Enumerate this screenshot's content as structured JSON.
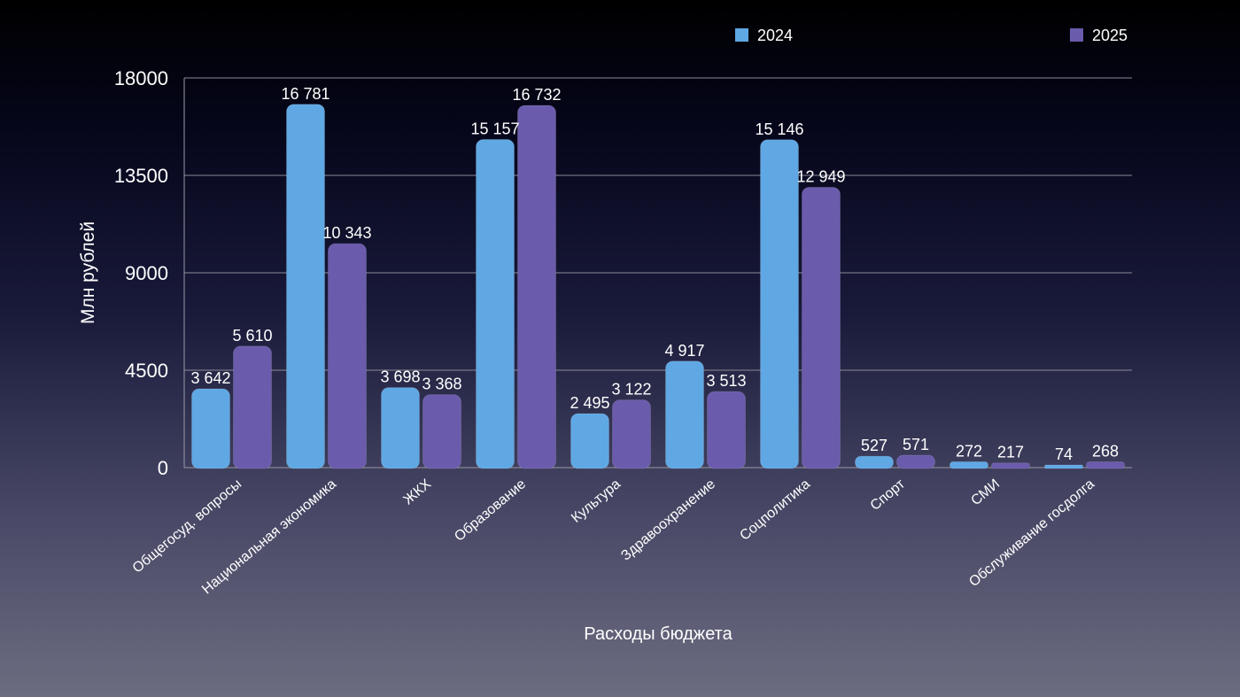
{
  "chart_data": {
    "type": "bar",
    "title": "",
    "xlabel": "Расходы бюджета",
    "ylabel": "Млн рублей",
    "ylim": [
      0,
      18000
    ],
    "yticks": [
      0,
      4500,
      9000,
      13500,
      18000
    ],
    "ytick_labels": [
      "0",
      "4500",
      "9000",
      "13500",
      "18000"
    ],
    "grid": true,
    "legend_position": "top-right",
    "categories": [
      "Общегосуд. вопросы",
      "Национальная экономика",
      "ЖКХ",
      "Образование",
      "Культура",
      "Здравоохранение",
      "Соцполитика",
      "Спорт",
      "СМИ",
      "Обслуживание госдолга"
    ],
    "series": [
      {
        "name": "2024",
        "color": "#5fa8e4",
        "values": [
          3642,
          16781,
          3698,
          15157,
          2495,
          4917,
          15146,
          527,
          272,
          74
        ],
        "labels": [
          "3 642",
          "16 781",
          "3 698",
          "15 157",
          "2 495",
          "4 917",
          "15 146",
          "527",
          "272",
          "74"
        ]
      },
      {
        "name": "2025",
        "color": "#6b5bad",
        "values": [
          5610,
          10343,
          3368,
          16732,
          3122,
          3513,
          12949,
          571,
          217,
          268
        ],
        "labels": [
          "5 610",
          "10 343",
          "3 368",
          "16 732",
          "3 122",
          "3 513",
          "12 949",
          "571",
          "217",
          "268"
        ]
      }
    ]
  }
}
